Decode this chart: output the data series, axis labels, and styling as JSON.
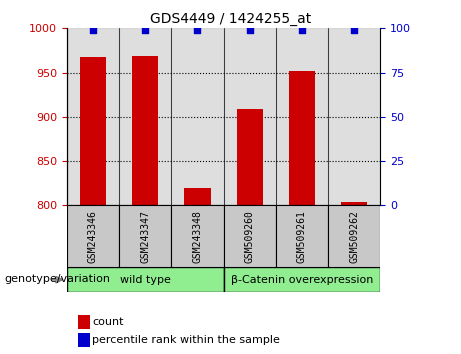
{
  "title": "GDS4449 / 1424255_at",
  "samples": [
    "GSM243346",
    "GSM243347",
    "GSM243348",
    "GSM509260",
    "GSM509261",
    "GSM509262"
  ],
  "count_values": [
    968,
    969,
    820,
    909,
    952,
    804
  ],
  "percentile_values": [
    99,
    99,
    99,
    99,
    99,
    99
  ],
  "bar_color": "#cc0000",
  "dot_color": "#0000cc",
  "ylim_left": [
    800,
    1000
  ],
  "ylim_right": [
    0,
    100
  ],
  "yticks_left": [
    800,
    850,
    900,
    950,
    1000
  ],
  "yticks_right": [
    0,
    25,
    50,
    75,
    100
  ],
  "grid_ticks": [
    850,
    900,
    950
  ],
  "group1_label": "wild type",
  "group2_label": "β-Catenin overexpression",
  "group_color": "#90ee90",
  "genotype_label": "genotype/variation",
  "legend_count_label": "count",
  "legend_pct_label": "percentile rank within the sample",
  "tick_label_color_left": "#cc0000",
  "tick_label_color_right": "#0000cc",
  "bar_width": 0.5,
  "sample_bg_color": "#c8c8c8",
  "cell_edge_color": "#000000"
}
